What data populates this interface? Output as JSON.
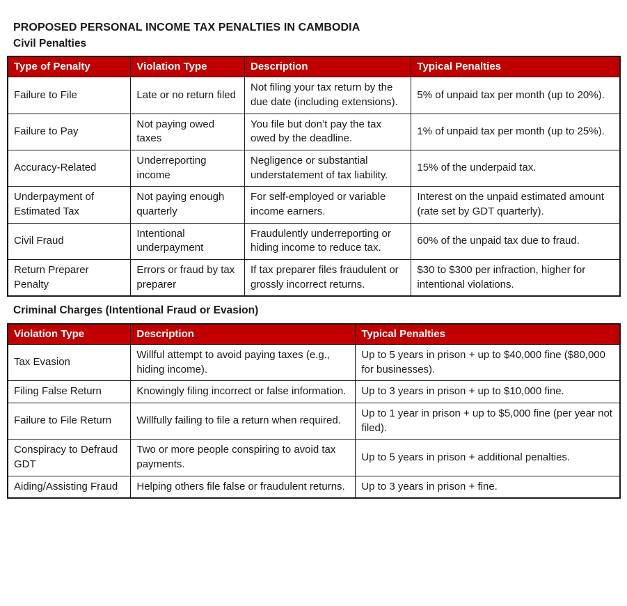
{
  "page": {
    "title": "PROPOSED PERSONAL INCOME TAX PENALTIES IN CAMBODIA",
    "colors": {
      "header_bg": "#c00000",
      "header_text": "#ffffff",
      "border": "#1a1a1a",
      "body_text": "#1a1a1a"
    }
  },
  "civil": {
    "heading": "Civil Penalties",
    "columns": [
      "Type of Penalty",
      "Violation Type",
      "Description",
      "Typical Penalties"
    ],
    "rows": [
      [
        "Failure to File",
        "Late or no return filed",
        "Not filing your tax return by the due date (including extensions).",
        "5% of unpaid tax per month (up to 20%)."
      ],
      [
        "Failure to Pay",
        "Not paying owed taxes",
        "You file but don’t pay the tax owed by the deadline.",
        "1% of unpaid tax per month (up to 25%)."
      ],
      [
        "Accuracy-Related",
        "Underreporting income",
        "Negligence or substantial understatement of tax liability.",
        "15% of the underpaid tax."
      ],
      [
        "Underpayment of Estimated Tax",
        "Not paying enough quarterly",
        "For self-employed or variable income earners.",
        "Interest on the unpaid estimated amount (rate set by GDT quarterly)."
      ],
      [
        "Civil Fraud",
        "Intentional underpayment",
        "Fraudulently underreporting or hiding income to reduce tax.",
        "60% of the unpaid tax due to fraud."
      ],
      [
        "Return Preparer Penalty",
        "Errors or fraud by tax preparer",
        "If tax preparer files fraudulent or grossly incorrect returns.",
        "$30 to $300 per infraction, higher for intentional violations."
      ]
    ]
  },
  "criminal": {
    "heading": "Criminal Charges (Intentional Fraud or Evasion)",
    "columns": [
      "Violation Type",
      "Description",
      "Typical Penalties"
    ],
    "rows": [
      [
        "Tax Evasion",
        "Willful attempt to avoid paying taxes (e.g., hiding income).",
        "Up to 5 years in prison + up to $40,000 fine ($80,000 for businesses)."
      ],
      [
        "Filing False Return",
        "Knowingly filing incorrect or false information.",
        "Up to 3 years in prison + up to $10,000 fine."
      ],
      [
        "Failure to File Return",
        "Willfully failing to file a return when required.",
        "Up to 1 year in prison + up to $5,000 fine (per year not filed)."
      ],
      [
        "Conspiracy to Defraud GDT",
        "Two or more people conspiring to avoid tax payments.",
        "Up to 5 years in prison + additional penalties."
      ],
      [
        "Aiding/Assisting Fraud",
        "Helping others file false or fraudulent returns.",
        "Up to 3 years in prison + fine."
      ]
    ]
  }
}
